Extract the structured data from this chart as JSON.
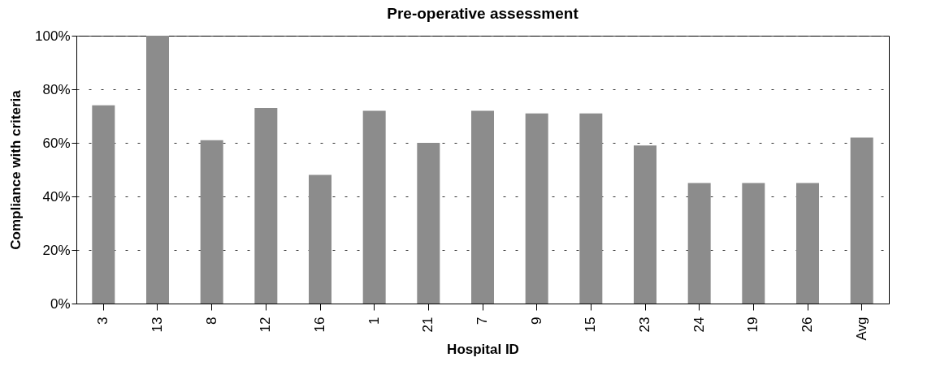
{
  "chart_data": {
    "type": "bar",
    "title": "Pre-operative assessment",
    "xlabel": "Hospital ID",
    "ylabel": "Compliance with criteria",
    "categories": [
      "3",
      "13",
      "8",
      "12",
      "16",
      "1",
      "21",
      "7",
      "9",
      "15",
      "23",
      "24",
      "19",
      "26",
      "Avg"
    ],
    "values": [
      74,
      100,
      61,
      73,
      48,
      72,
      60,
      72,
      71,
      71,
      59,
      45,
      45,
      45,
      62
    ],
    "color": "#8c8c8c",
    "ylim": [
      0,
      100
    ],
    "yticks": [
      {
        "value": 0,
        "label": "0%"
      },
      {
        "value": 20,
        "label": "20%"
      },
      {
        "value": 40,
        "label": "40%"
      },
      {
        "value": 60,
        "label": "60%"
      },
      {
        "value": 80,
        "label": "80%"
      },
      {
        "value": 100,
        "label": "100%"
      }
    ],
    "grid": "y"
  }
}
